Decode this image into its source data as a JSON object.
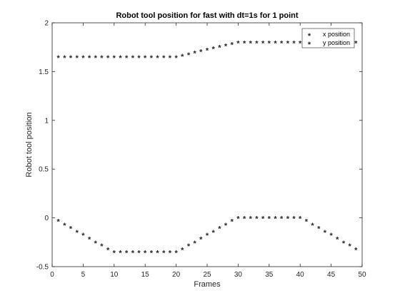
{
  "chart_data": {
    "type": "scatter",
    "title": "Robot tool position for fast with dt=1s for 1 point",
    "xlabel": "Frames",
    "ylabel": "Robot tool position",
    "xlim": [
      0,
      50
    ],
    "ylim": [
      -0.5,
      2
    ],
    "xticks": [
      0,
      5,
      10,
      15,
      20,
      25,
      30,
      35,
      40,
      45,
      50
    ],
    "yticks": [
      -0.5,
      0,
      0.5,
      1,
      1.5,
      2
    ],
    "xtick_labels": [
      "0",
      "5",
      "10",
      "15",
      "20",
      "25",
      "30",
      "35",
      "40",
      "45",
      "50"
    ],
    "ytick_labels": [
      "-0.5",
      "0",
      "0.5",
      "1",
      "1.5",
      "2"
    ],
    "grid": false,
    "legend_position": "top-right",
    "marker": "*",
    "series": [
      {
        "name": "x position",
        "color": "#ff0000",
        "x": [
          1,
          2,
          3,
          4,
          5,
          6,
          7,
          8,
          9,
          10,
          11,
          12,
          13,
          14,
          15,
          16,
          17,
          18,
          19,
          20,
          21,
          22,
          23,
          24,
          25,
          26,
          27,
          28,
          29,
          30,
          31,
          32,
          33,
          34,
          35,
          36,
          37,
          38,
          39,
          40,
          41,
          42,
          43,
          44,
          45,
          46,
          47,
          48,
          49
        ],
        "y": [
          -0.03,
          -0.07,
          -0.1,
          -0.14,
          -0.17,
          -0.21,
          -0.25,
          -0.28,
          -0.32,
          -0.35,
          -0.35,
          -0.35,
          -0.35,
          -0.35,
          -0.35,
          -0.35,
          -0.35,
          -0.35,
          -0.35,
          -0.35,
          -0.32,
          -0.28,
          -0.25,
          -0.21,
          -0.17,
          -0.14,
          -0.1,
          -0.07,
          -0.03,
          0,
          0,
          0,
          0,
          0,
          0,
          0,
          0,
          0,
          0,
          0,
          -0.03,
          -0.07,
          -0.1,
          -0.14,
          -0.17,
          -0.21,
          -0.25,
          -0.28,
          -0.32
        ]
      },
      {
        "name": "y position",
        "color": "#0000ff",
        "x": [
          1,
          2,
          3,
          4,
          5,
          6,
          7,
          8,
          9,
          10,
          11,
          12,
          13,
          14,
          15,
          16,
          17,
          18,
          19,
          20,
          21,
          22,
          23,
          24,
          25,
          26,
          27,
          28,
          29,
          30,
          31,
          32,
          33,
          34,
          35,
          36,
          37,
          38,
          39,
          40,
          41,
          42,
          43,
          44,
          45,
          46,
          47,
          48,
          49
        ],
        "y": [
          1.65,
          1.65,
          1.65,
          1.65,
          1.65,
          1.65,
          1.65,
          1.65,
          1.65,
          1.65,
          1.65,
          1.65,
          1.65,
          1.65,
          1.65,
          1.65,
          1.65,
          1.65,
          1.65,
          1.65,
          1.665,
          1.68,
          1.695,
          1.71,
          1.725,
          1.74,
          1.755,
          1.77,
          1.785,
          1.8,
          1.8,
          1.8,
          1.8,
          1.8,
          1.8,
          1.8,
          1.8,
          1.8,
          1.8,
          1.8,
          1.8,
          1.8,
          1.8,
          1.8,
          1.8,
          1.8,
          1.8,
          1.8,
          1.8
        ]
      }
    ]
  }
}
